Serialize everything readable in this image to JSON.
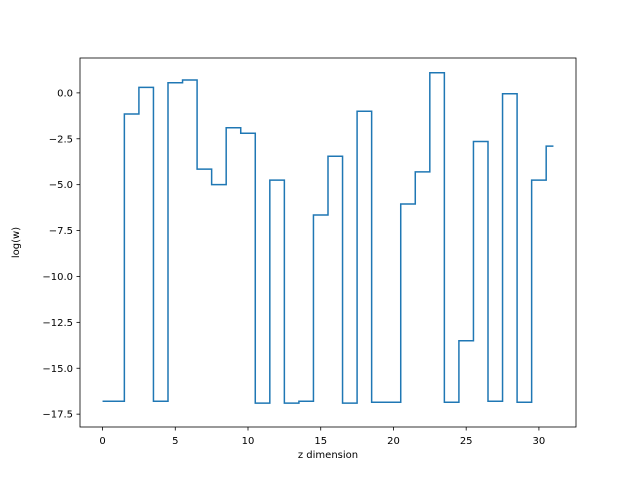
{
  "chart_data": {
    "type": "line",
    "drawstyle": "steps-mid",
    "title": "",
    "xlabel": "z dimension",
    "ylabel": "log(w)",
    "xlim": [
      -1.55,
      32.55
    ],
    "ylim": [
      -18.2,
      1.9
    ],
    "xticks": [
      0,
      5,
      10,
      15,
      20,
      25,
      30
    ],
    "yticks": [
      0.0,
      -2.5,
      -5.0,
      -7.5,
      -10.0,
      -12.5,
      -15.0,
      -17.5
    ],
    "ytick_labels": [
      "0.0",
      "−2.5",
      "−5.0",
      "−7.5",
      "−10.0",
      "−12.5",
      "−15.0",
      "−17.5"
    ],
    "grid": false,
    "legend": "none",
    "line_color": "#1f77b4",
    "x": [
      0,
      1,
      2,
      3,
      4,
      5,
      6,
      7,
      8,
      9,
      10,
      11,
      12,
      13,
      14,
      15,
      16,
      17,
      18,
      19,
      20,
      21,
      22,
      23,
      24,
      25,
      26,
      27,
      28,
      29,
      30,
      31
    ],
    "values": [
      -16.8,
      -16.8,
      -1.15,
      0.3,
      -16.8,
      0.55,
      0.7,
      -4.15,
      -5.0,
      -1.9,
      -2.2,
      -16.9,
      -4.75,
      -16.9,
      -16.8,
      -6.65,
      -3.45,
      -16.9,
      -1.0,
      -16.85,
      -16.85,
      -6.05,
      -4.3,
      1.1,
      -16.85,
      -13.5,
      -2.65,
      -16.8,
      -0.05,
      -16.85,
      -4.75,
      -2.9
    ]
  }
}
